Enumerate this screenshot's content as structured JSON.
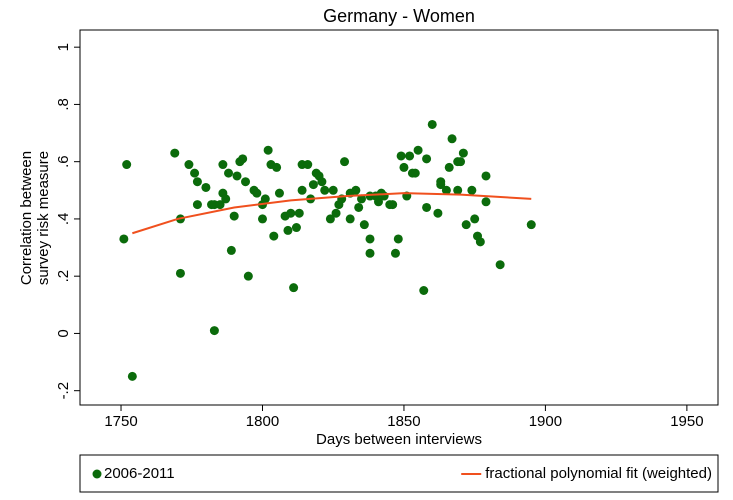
{
  "chart_data": {
    "type": "scatter",
    "title": "Germany - Women",
    "x_label": "Days between interviews",
    "y_label": [
      "Correlation between",
      "survey risk measure"
    ],
    "xlim": [
      1735.5,
      1961
    ],
    "ylim": [
      -0.25,
      1.06
    ],
    "xticks": [
      1750,
      1800,
      1850,
      1900,
      1950
    ],
    "yticks": [
      {
        "value": -0.2,
        "label": "-.2"
      },
      0,
      {
        "value": 0.2,
        "label": ".2"
      },
      {
        "value": 0.4,
        "label": ".4"
      },
      {
        "value": 0.6,
        "label": ".6"
      },
      {
        "value": 0.8,
        "label": ".8"
      },
      1
    ],
    "grid": false,
    "legend_position": "bottom",
    "series": [
      {
        "name": "2006-2011",
        "color": "#0b6b0b",
        "type": "scatter",
        "x": [
          1754,
          1751,
          1752,
          1769,
          1771,
          1771,
          1774,
          1776,
          1777,
          1777,
          1780,
          1782,
          1783,
          1783,
          1785,
          1786,
          1786,
          1787,
          1788,
          1789,
          1790,
          1791,
          1792,
          1793,
          1794,
          1795,
          1797,
          1798,
          1800,
          1800,
          1801,
          1802,
          1803,
          1804,
          1805,
          1806,
          1808,
          1809,
          1810,
          1811,
          1812,
          1813,
          1814,
          1814,
          1816,
          1817,
          1818,
          1819,
          1820,
          1821,
          1822,
          1824,
          1825,
          1826,
          1827,
          1828,
          1829,
          1831,
          1831,
          1833,
          1834,
          1835,
          1836,
          1838,
          1838,
          1838,
          1840,
          1841,
          1842,
          1843,
          1845,
          1846,
          1847,
          1848,
          1849,
          1850,
          1851,
          1852,
          1853,
          1854,
          1855,
          1857,
          1858,
          1858,
          1860,
          1862,
          1863,
          1863,
          1865,
          1866,
          1867,
          1869,
          1869,
          1870,
          1871,
          1872,
          1874,
          1875,
          1876,
          1877,
          1879,
          1879,
          1884,
          1895
        ],
        "values": [
          -0.15,
          0.33,
          0.59,
          0.63,
          0.4,
          0.21,
          0.59,
          0.56,
          0.53,
          0.45,
          0.51,
          0.45,
          0.45,
          0.01,
          0.45,
          0.59,
          0.49,
          0.47,
          0.56,
          0.29,
          0.41,
          0.55,
          0.6,
          0.61,
          0.53,
          0.2,
          0.5,
          0.49,
          0.4,
          0.45,
          0.47,
          0.64,
          0.59,
          0.34,
          0.58,
          0.49,
          0.41,
          0.36,
          0.42,
          0.16,
          0.37,
          0.42,
          0.59,
          0.5,
          0.59,
          0.47,
          0.52,
          0.56,
          0.55,
          0.53,
          0.5,
          0.4,
          0.5,
          0.42,
          0.45,
          0.47,
          0.6,
          0.4,
          0.49,
          0.5,
          0.44,
          0.47,
          0.38,
          0.48,
          0.33,
          0.28,
          0.48,
          0.46,
          0.49,
          0.48,
          0.45,
          0.45,
          0.28,
          0.33,
          0.62,
          0.58,
          0.48,
          0.62,
          0.56,
          0.56,
          0.64,
          0.15,
          0.44,
          0.61,
          0.73,
          0.42,
          0.52,
          0.53,
          0.5,
          0.58,
          0.68,
          0.6,
          0.5,
          0.6,
          0.63,
          0.38,
          0.5,
          0.4,
          0.34,
          0.32,
          0.55,
          0.46,
          0.24,
          0.38
        ]
      },
      {
        "name": "fractional polynomial fit (weighted)",
        "color": "#f0501e",
        "type": "line",
        "x": [
          1754,
          1770,
          1790,
          1810,
          1830,
          1850,
          1870,
          1895
        ],
        "values": [
          0.35,
          0.4,
          0.44,
          0.465,
          0.48,
          0.49,
          0.485,
          0.47
        ]
      }
    ]
  }
}
